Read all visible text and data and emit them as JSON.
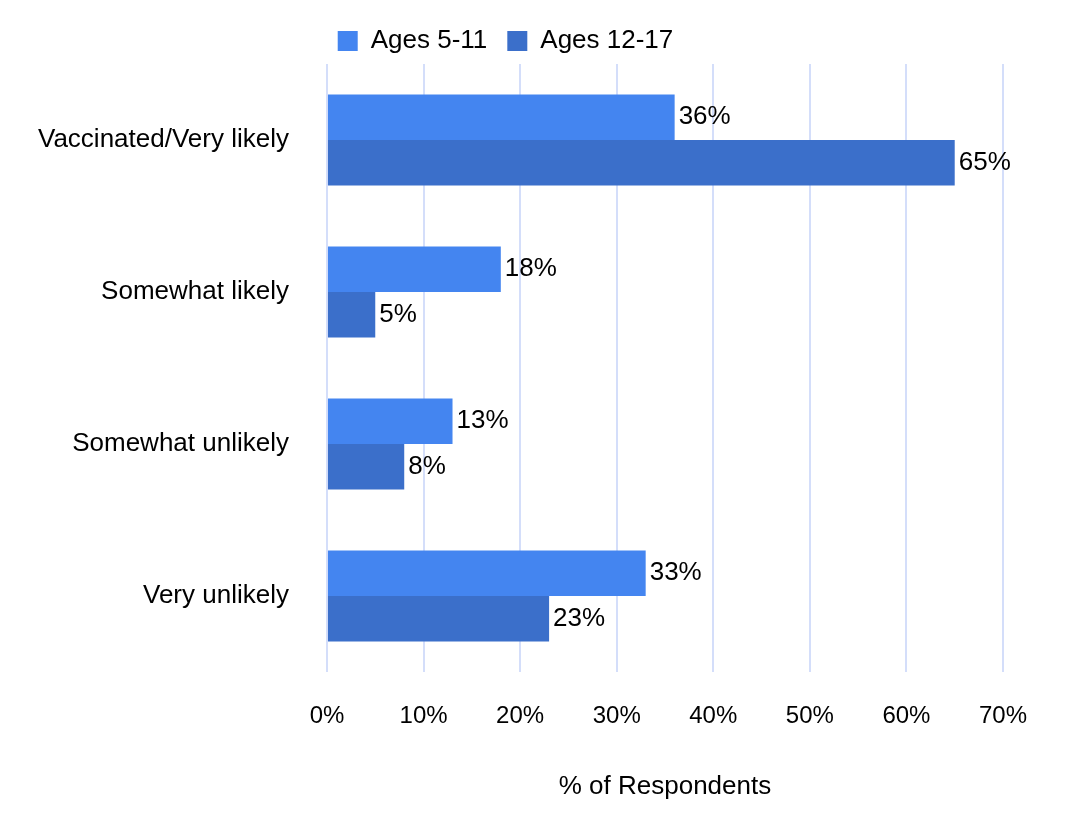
{
  "chart_data": {
    "type": "bar",
    "orientation": "horizontal",
    "xlabel": "% of Respondents",
    "categories": [
      "Vaccinated/Very likely",
      "Somewhat likely",
      "Somewhat unlikely",
      "Very unlikely"
    ],
    "series": [
      {
        "name": "Ages 5-11",
        "color": "#4485f0",
        "values": [
          36,
          18,
          13,
          33
        ],
        "value_labels": [
          "36%",
          "18%",
          "13%",
          "33%"
        ]
      },
      {
        "name": "Ages 12-17",
        "color": "#3b6fca",
        "values": [
          65,
          5,
          8,
          23
        ],
        "value_labels": [
          "65%",
          "5%",
          "8%",
          "23%"
        ]
      }
    ],
    "xlim": [
      0,
      70
    ],
    "xticks": [
      {
        "value": 0,
        "label": "0%"
      },
      {
        "value": 10,
        "label": "10%"
      },
      {
        "value": 20,
        "label": "20%"
      },
      {
        "value": 30,
        "label": "30%"
      },
      {
        "value": 40,
        "label": "40%"
      },
      {
        "value": 50,
        "label": "50%"
      },
      {
        "value": 60,
        "label": "60%"
      },
      {
        "value": 70,
        "label": "70%"
      }
    ],
    "grid": "x",
    "legend": "top"
  }
}
